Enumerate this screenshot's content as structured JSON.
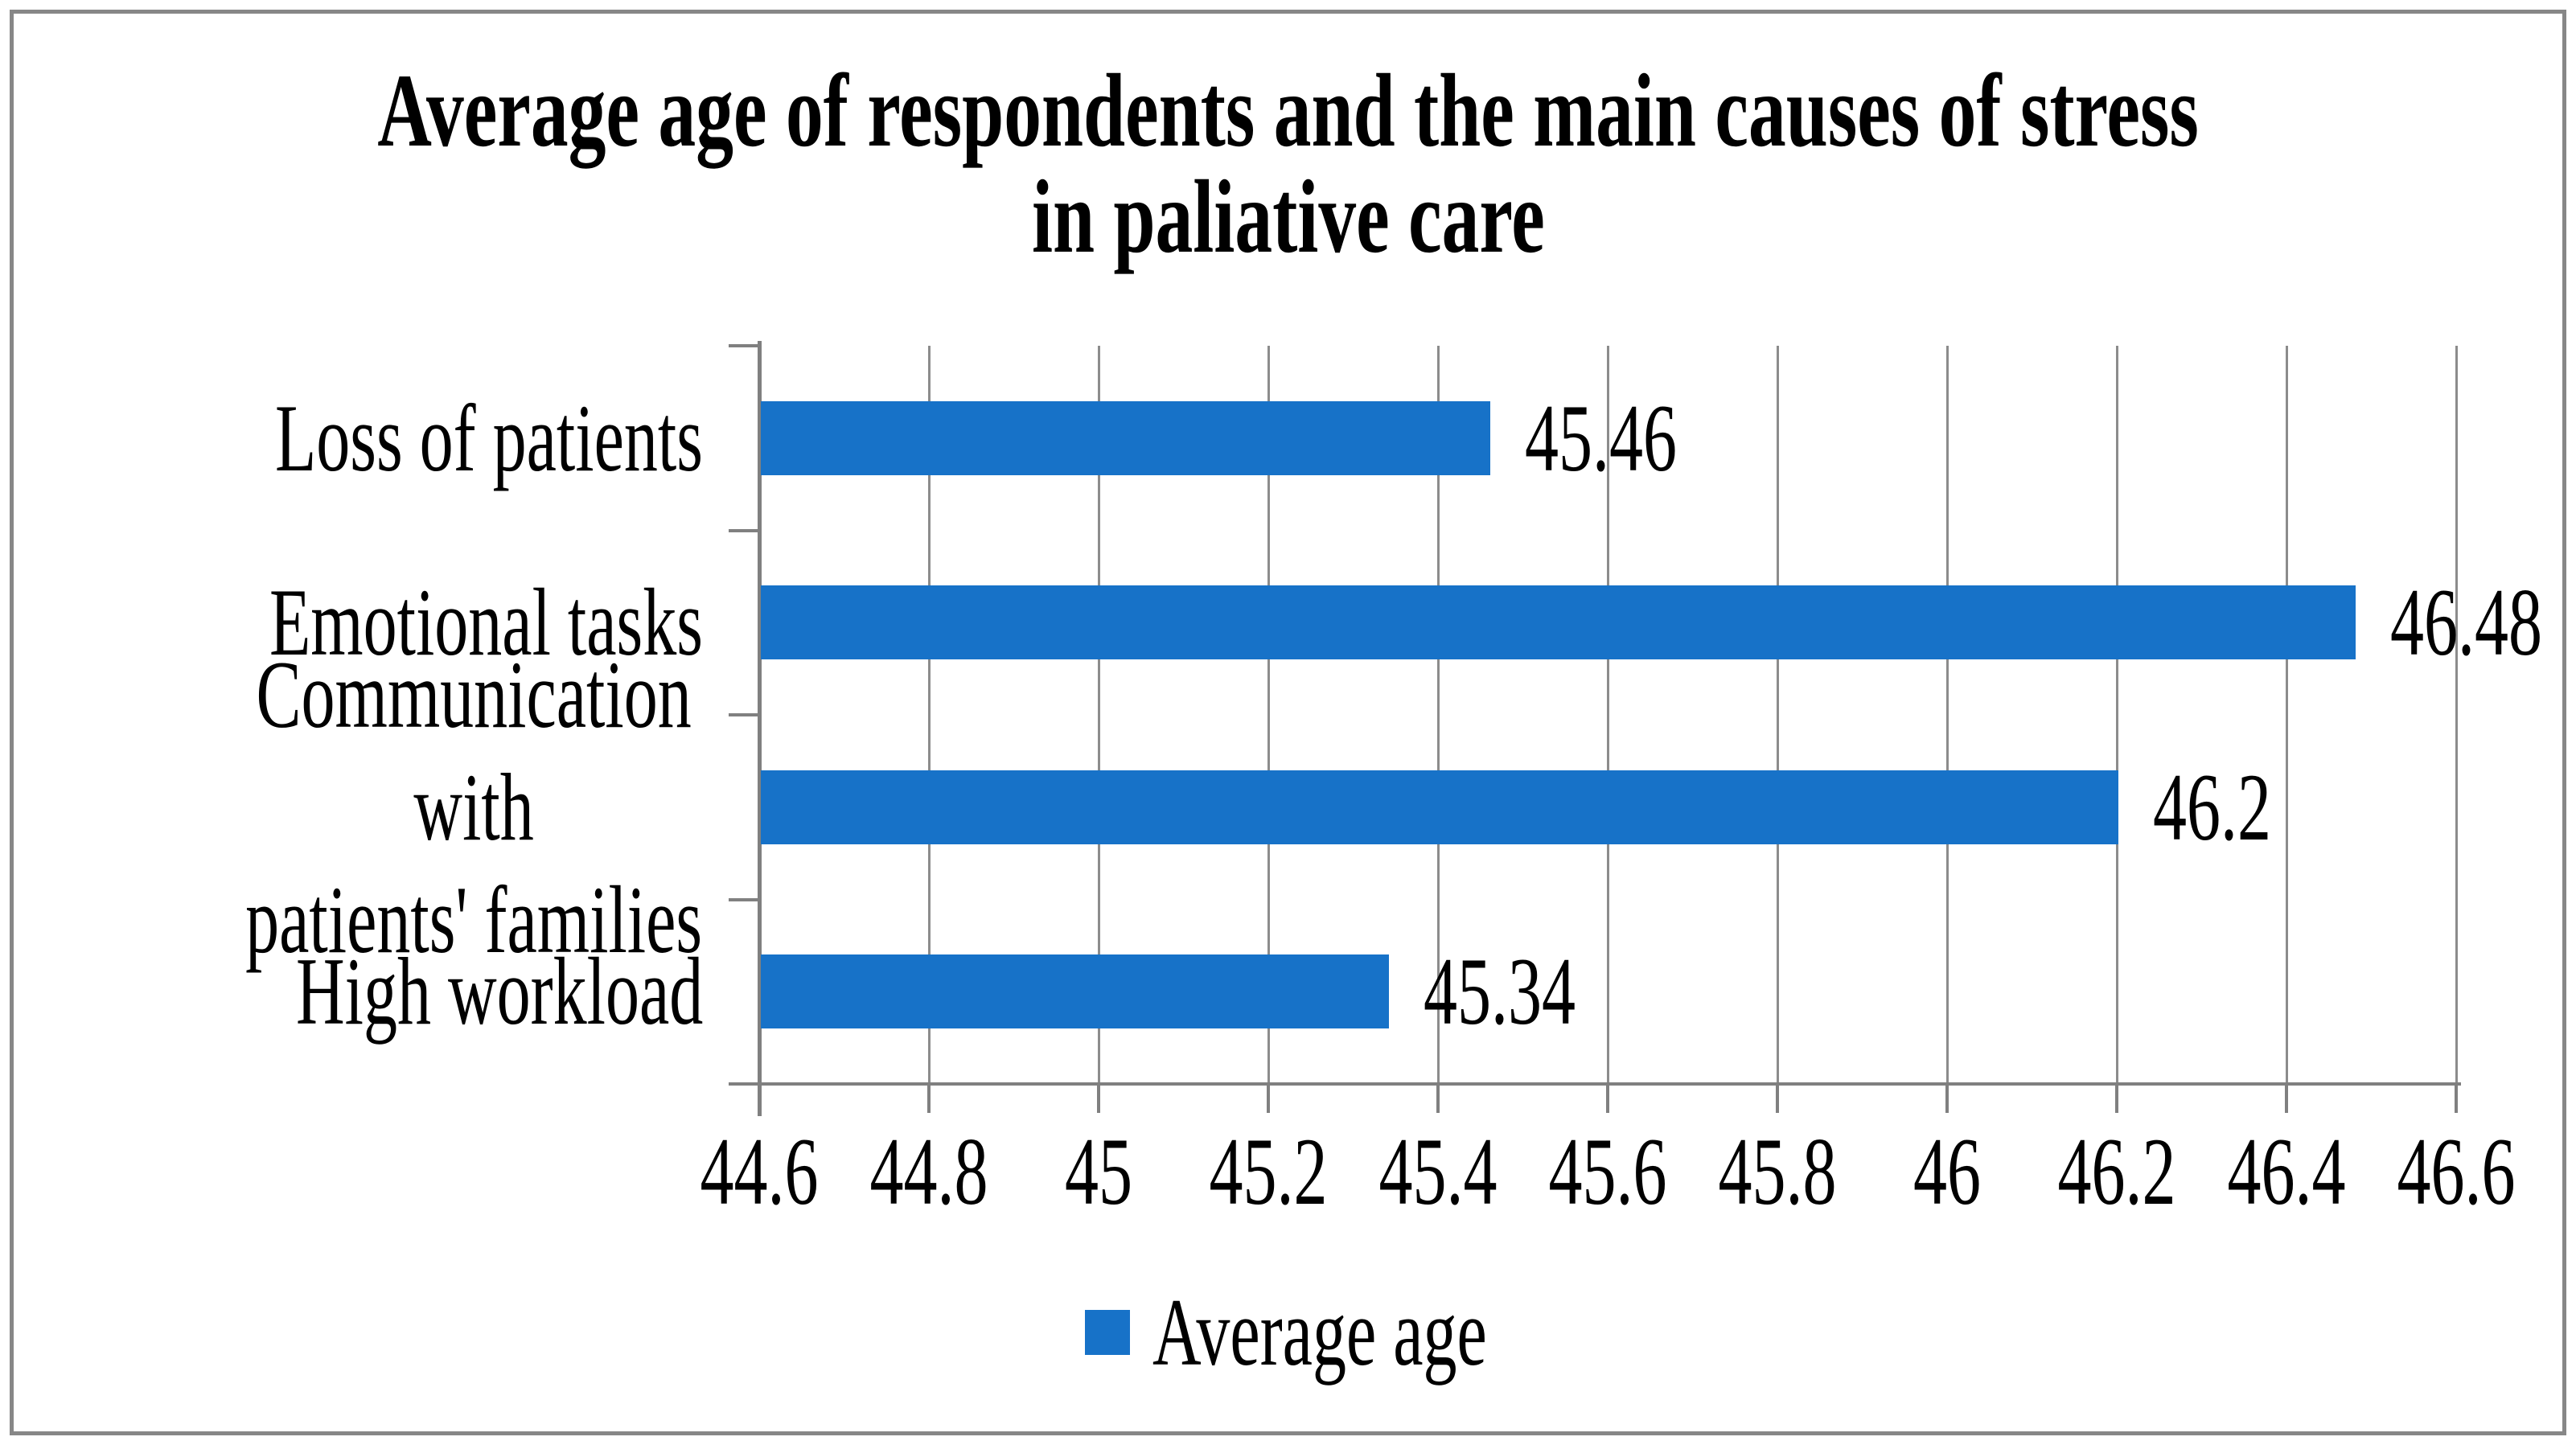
{
  "chart_data": {
    "type": "bar",
    "orientation": "horizontal",
    "title_lines": [
      "Average age of respondents and the main causes of stress",
      "in paliative care"
    ],
    "categories": [
      "Loss of patients",
      "Emotional tasks",
      "Communication with\npatients' families",
      "High workload"
    ],
    "series": [
      {
        "name": "Average age",
        "values": [
          45.46,
          46.48,
          46.2,
          45.34
        ]
      }
    ],
    "value_labels": [
      "45.46",
      "46.48",
      "46.2",
      "45.34"
    ],
    "x_ticks": [
      "44.6",
      "44.8",
      "45",
      "45.2",
      "45.4",
      "45.6",
      "45.8",
      "46",
      "46.2",
      "46.4",
      "46.6"
    ],
    "x_tick_values": [
      44.6,
      44.8,
      45.0,
      45.2,
      45.4,
      45.6,
      45.8,
      46.0,
      46.2,
      46.4,
      46.6
    ],
    "xlim": [
      44.6,
      46.6
    ],
    "grid": "vertical-only",
    "legend_position": "bottom",
    "legend_label": "Average age",
    "colors": {
      "bar": "#1772C8",
      "gridline": "#8C8C8C",
      "axis": "#808080",
      "frame_border": "#878787",
      "text": "#000000",
      "background": "#FFFFFF"
    }
  }
}
